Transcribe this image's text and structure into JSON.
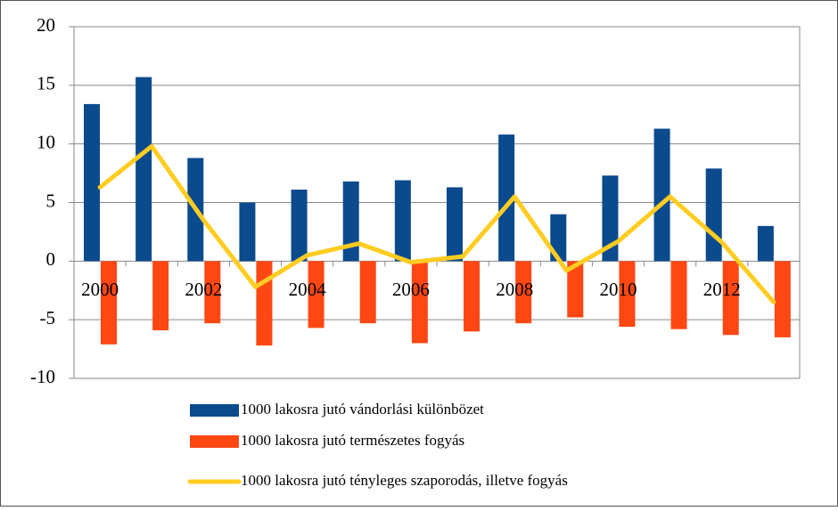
{
  "chart_data": {
    "type": "bar",
    "categories": [
      "2000",
      null,
      "2002",
      null,
      "2004",
      null,
      "2006",
      null,
      "2008",
      null,
      "2010",
      null,
      "2012",
      null
    ],
    "series": [
      {
        "name": "1000 lakosra jutó vándorlási különbözet",
        "type": "bar",
        "color": "#0b4a8c",
        "values": [
          13.4,
          15.7,
          8.8,
          5.0,
          6.1,
          6.8,
          6.9,
          6.3,
          10.8,
          4.0,
          7.3,
          11.3,
          7.9,
          3.0
        ]
      },
      {
        "name": "1000 lakosra jutó természetes fogyás",
        "type": "bar",
        "color": "#ff4713",
        "values": [
          -7.1,
          -5.9,
          -5.3,
          -7.2,
          -5.7,
          -5.3,
          -7.0,
          -6.0,
          -5.3,
          -4.8,
          -5.6,
          -5.8,
          -6.3,
          -6.5
        ]
      },
      {
        "name": "1000 lakosra jutó tényleges szaporodás, illetve fogyás",
        "type": "line",
        "color": "#ffcc22",
        "values": [
          6.3,
          9.8,
          3.5,
          -2.2,
          0.5,
          1.5,
          -0.1,
          0.4,
          5.5,
          -0.8,
          1.7,
          5.5,
          1.6,
          -3.5
        ]
      }
    ],
    "ylim": [
      -10,
      20
    ],
    "yticks": [
      -10,
      -5,
      0,
      5,
      10,
      15,
      20
    ],
    "grid": true,
    "legend": "bottom"
  }
}
